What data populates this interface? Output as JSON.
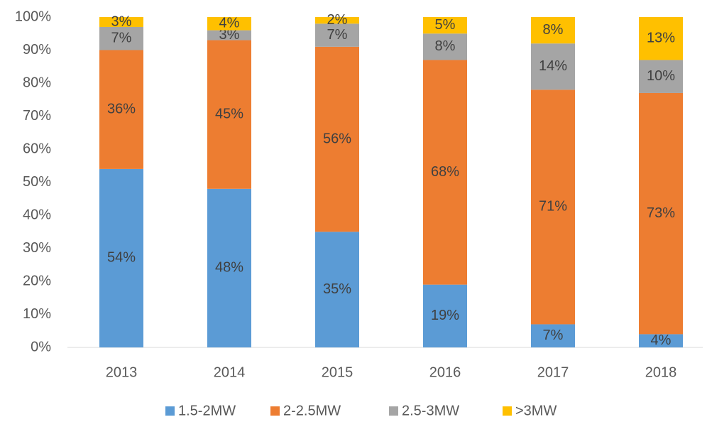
{
  "chart_data": {
    "type": "stacked_bar",
    "categories": [
      "2013",
      "2014",
      "2015",
      "2016",
      "2017",
      "2018"
    ],
    "series": [
      {
        "name": "1.5-2MW",
        "color": "#5b9bd5",
        "values": [
          54,
          48,
          35,
          19,
          7,
          4
        ],
        "value_labels": [
          "54%",
          "48%",
          "35%",
          "19%",
          "7%",
          "4%"
        ]
      },
      {
        "name": "2-2.5MW",
        "color": "#ed7d31",
        "values": [
          36,
          45,
          56,
          68,
          71,
          73
        ],
        "value_labels": [
          "36%",
          "45%",
          "56%",
          "68%",
          "71%",
          "73%"
        ]
      },
      {
        "name": "2.5-3MW",
        "color": "#a5a5a5",
        "values": [
          7,
          3,
          7,
          8,
          14,
          10
        ],
        "value_labels": [
          "7%",
          "3%",
          "7%",
          "8%",
          "14%",
          "10%"
        ]
      },
      {
        "name": ">3MW",
        "color": "#ffc000",
        "values": [
          3,
          4,
          2,
          5,
          8,
          13
        ],
        "value_labels": [
          "3%",
          "4%",
          "2%",
          "5%",
          "8%",
          "13%"
        ]
      }
    ],
    "ylim": [
      0,
      100
    ],
    "yticks": [
      {
        "value": 0,
        "label": "0%"
      },
      {
        "value": 10,
        "label": "10%"
      },
      {
        "value": 20,
        "label": "20%"
      },
      {
        "value": 30,
        "label": "30%"
      },
      {
        "value": 40,
        "label": "40%"
      },
      {
        "value": 50,
        "label": "50%"
      },
      {
        "value": 60,
        "label": "60%"
      },
      {
        "value": 70,
        "label": "70%"
      },
      {
        "value": 80,
        "label": "80%"
      },
      {
        "value": 90,
        "label": "90%"
      },
      {
        "value": 100,
        "label": "100%"
      }
    ],
    "legend": "bottom"
  }
}
